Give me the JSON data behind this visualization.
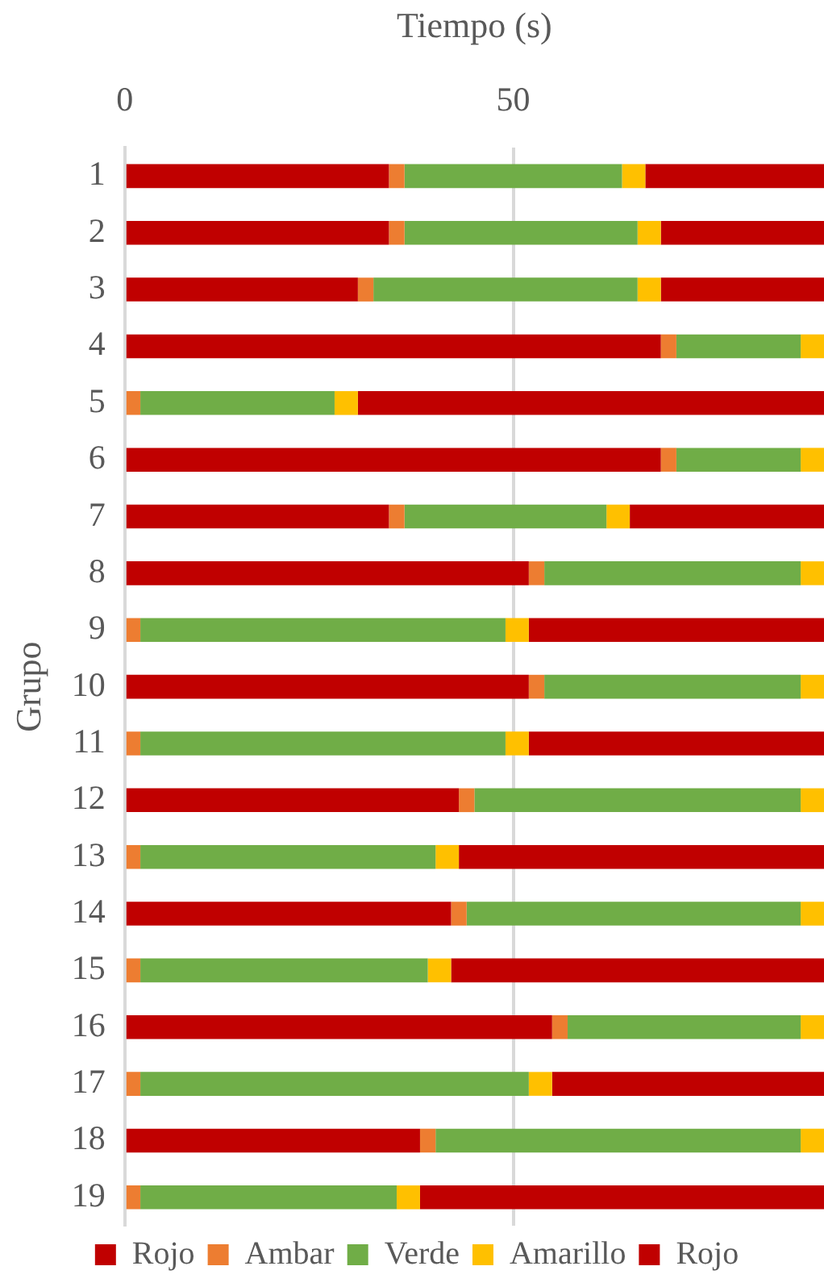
{
  "chart_data": {
    "type": "bar",
    "orientation": "horizontal",
    "stacked": true,
    "xlabel": "Tiempo (s)",
    "ylabel": "Grupo",
    "categories": [
      "1",
      "2",
      "3",
      "4",
      "5",
      "6",
      "7",
      "8",
      "9",
      "10",
      "11",
      "12",
      "13",
      "14",
      "15",
      "16",
      "17",
      "18",
      "19"
    ],
    "series": [
      {
        "name": "Rojo",
        "color": "#c00000",
        "values": [
          34,
          34,
          30,
          69,
          0,
          69,
          34,
          52,
          0,
          52,
          0,
          43,
          0,
          42,
          0,
          55,
          0,
          38,
          0
        ]
      },
      {
        "name": "Ambar",
        "color": "#ed7d31",
        "values": [
          2,
          2,
          2,
          2,
          2,
          2,
          2,
          2,
          2,
          2,
          2,
          2,
          2,
          2,
          2,
          2,
          2,
          2,
          2
        ]
      },
      {
        "name": "Verde",
        "color": "#70ad47",
        "values": [
          28,
          30,
          34,
          16,
          25,
          16,
          26,
          33,
          47,
          33,
          47,
          42,
          38,
          43,
          37,
          30,
          50,
          47,
          33
        ]
      },
      {
        "name": "Amarillo",
        "color": "#ffc000",
        "values": [
          3,
          3,
          3,
          3,
          3,
          3,
          3,
          3,
          3,
          3,
          3,
          3,
          3,
          3,
          3,
          3,
          3,
          3,
          3
        ]
      },
      {
        "name": "Rojo",
        "color": "#c00000",
        "values": [
          23,
          21,
          21,
          0,
          60,
          0,
          25,
          0,
          38,
          0,
          38,
          0,
          47,
          0,
          48,
          0,
          35,
          0,
          52
        ]
      }
    ],
    "xlim": [
      0,
      90
    ],
    "xticks": [
      0,
      50
    ],
    "grid": "x",
    "legend": "bottom"
  }
}
